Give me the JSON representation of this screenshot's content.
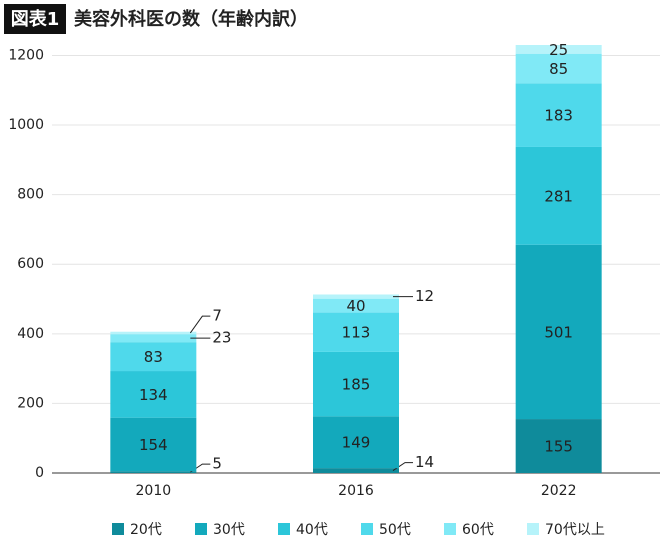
{
  "chart_data": {
    "type": "stacked-bar",
    "badge": "図表1",
    "title": "美容外科医の数（年齢内訳）",
    "categories": [
      "2010",
      "2016",
      "2022"
    ],
    "series": [
      {
        "name": "20代",
        "color": "#0f8b9b",
        "values": [
          5,
          14,
          155
        ]
      },
      {
        "name": "30代",
        "color": "#13a9bc",
        "values": [
          154,
          149,
          501
        ]
      },
      {
        "name": "40代",
        "color": "#2cc6d9",
        "values": [
          134,
          185,
          281
        ]
      },
      {
        "name": "50代",
        "color": "#4fd9eb",
        "values": [
          83,
          113,
          183
        ]
      },
      {
        "name": "60代",
        "color": "#80e9f6",
        "values": [
          23,
          40,
          85
        ]
      },
      {
        "name": "70代以上",
        "color": "#b6f3fa",
        "values": [
          7,
          12,
          25
        ]
      }
    ],
    "ylim": [
      0,
      1230
    ],
    "yticks": [
      0,
      200,
      400,
      600,
      800,
      1000,
      1200
    ],
    "grid": true,
    "legend": "bottom"
  }
}
